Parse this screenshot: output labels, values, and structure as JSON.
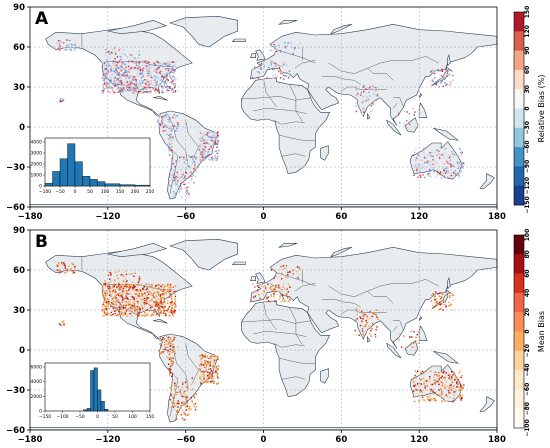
{
  "panels": [
    {
      "letter": "A",
      "xticks": [
        "−180",
        "−120",
        "−60",
        "0",
        "60",
        "120",
        "180"
      ],
      "yticks": [
        "90",
        "60",
        "30",
        "0",
        "−30",
        "−60"
      ],
      "colorbar": {
        "label": "Relative Bias (%)",
        "ticks": [
          "150",
          "120",
          "90",
          "60",
          "30",
          "0",
          "−30",
          "−60",
          "−90",
          "−120",
          "−150"
        ],
        "colors": [
          "#b2182b",
          "#d6604d",
          "#f4a582",
          "#fddbc7",
          "#f7f7f7",
          "#d1e5f0",
          "#92c5de",
          "#4393c3",
          "#2166ac",
          "#1c3f8f"
        ]
      },
      "map_colors": {
        "land": "#e8ecef",
        "ocean": "#ffffff",
        "border": "#2a3f55",
        "dominant": "#9fbde8",
        "accent": "#d0242c"
      },
      "inset": {
        "xticks": [
          "−100",
          "−50",
          "0",
          "50",
          "100",
          "150",
          "200",
          "250"
        ],
        "yticks": [
          "0",
          "1000",
          "2000",
          "3000",
          "4000"
        ],
        "bar_color": "#1f77b4"
      }
    },
    {
      "letter": "B",
      "xticks": [
        "−180",
        "−120",
        "−60",
        "0",
        "60",
        "120",
        "180"
      ],
      "yticks": [
        "90",
        "60",
        "30",
        "0",
        "−30",
        "−60"
      ],
      "colorbar": {
        "label": "Mean Bias",
        "ticks": [
          "100",
          "80",
          "60",
          "40",
          "20",
          "0",
          "−20",
          "−40",
          "−60",
          "−80",
          "−100"
        ],
        "colors": [
          "#67000d",
          "#a50f15",
          "#d7301f",
          "#ef6548",
          "#fc8d59",
          "#fdae61",
          "#fdd49e",
          "#fee8c8",
          "#fff3dd",
          "#fffbf0"
        ]
      },
      "map_colors": {
        "land": "#e8ecef",
        "ocean": "#ffffff",
        "border": "#2a3f55",
        "dominant": "#f28e2b",
        "accent": "#b8101c"
      },
      "inset": {
        "xticks": [
          "−150",
          "−100",
          "−50",
          "0",
          "50",
          "100",
          "150"
        ],
        "yticks": [
          "0",
          "2000",
          "4000",
          "6000"
        ],
        "bar_color": "#1f77b4"
      }
    }
  ]
}
